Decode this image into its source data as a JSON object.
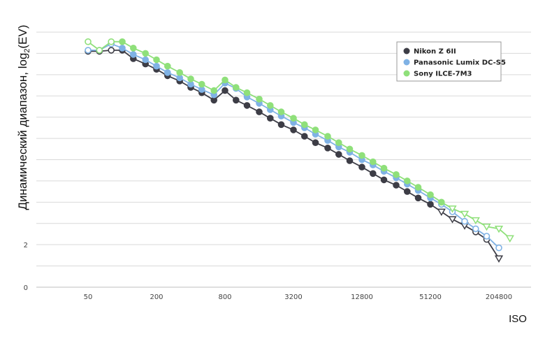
{
  "chart_data": {
    "type": "line",
    "xlabel": "ISO",
    "ylabel": "Динамический диапазон, log",
    "ylabel_sub": "2",
    "ylabel_tail": "(EV)",
    "x_scale": "log2",
    "x_ticks": [
      50,
      200,
      800,
      3200,
      12800,
      51200,
      204800
    ],
    "x_tick_labels": [
      "50",
      "200",
      "800",
      "3200",
      "12800",
      "51200",
      "204800"
    ],
    "y_ticks": [
      0,
      1,
      2,
      3,
      4,
      5,
      6,
      7,
      8,
      9,
      10,
      11,
      12
    ],
    "y_tick_labels": [
      "0",
      "",
      "2",
      "",
      "",
      "",
      "",
      "",
      "",
      "",
      "",
      "",
      ""
    ],
    "ylim": [
      0,
      12
    ],
    "grid": true,
    "legend_position": "top-right",
    "series": [
      {
        "name": "Nikon Z 6II",
        "color": "#3d3d46",
        "points": [
          {
            "x": 50,
            "y": 11.1,
            "m": "oc"
          },
          {
            "x": 63,
            "y": 11.1,
            "m": "f"
          },
          {
            "x": 80,
            "y": 11.15,
            "m": "oc"
          },
          {
            "x": 100,
            "y": 11.15,
            "m": "f"
          },
          {
            "x": 125,
            "y": 10.75,
            "m": "f"
          },
          {
            "x": 160,
            "y": 10.5,
            "m": "f"
          },
          {
            "x": 200,
            "y": 10.25,
            "m": "f"
          },
          {
            "x": 250,
            "y": 9.95,
            "m": "f"
          },
          {
            "x": 320,
            "y": 9.7,
            "m": "f"
          },
          {
            "x": 400,
            "y": 9.4,
            "m": "f"
          },
          {
            "x": 500,
            "y": 9.15,
            "m": "f"
          },
          {
            "x": 640,
            "y": 8.8,
            "m": "f"
          },
          {
            "x": 800,
            "y": 9.25,
            "m": "f"
          },
          {
            "x": 1000,
            "y": 8.8,
            "m": "f"
          },
          {
            "x": 1250,
            "y": 8.55,
            "m": "f"
          },
          {
            "x": 1600,
            "y": 8.25,
            "m": "f"
          },
          {
            "x": 2000,
            "y": 7.95,
            "m": "f"
          },
          {
            "x": 2500,
            "y": 7.65,
            "m": "f"
          },
          {
            "x": 3200,
            "y": 7.4,
            "m": "f"
          },
          {
            "x": 4000,
            "y": 7.1,
            "m": "f"
          },
          {
            "x": 5000,
            "y": 6.8,
            "m": "f"
          },
          {
            "x": 6400,
            "y": 6.55,
            "m": "f"
          },
          {
            "x": 8000,
            "y": 6.25,
            "m": "f"
          },
          {
            "x": 10000,
            "y": 5.95,
            "m": "f"
          },
          {
            "x": 12800,
            "y": 5.65,
            "m": "f"
          },
          {
            "x": 16000,
            "y": 5.35,
            "m": "f"
          },
          {
            "x": 20000,
            "y": 5.05,
            "m": "f"
          },
          {
            "x": 25600,
            "y": 4.8,
            "m": "f"
          },
          {
            "x": 32000,
            "y": 4.5,
            "m": "f"
          },
          {
            "x": 40000,
            "y": 4.2,
            "m": "f"
          },
          {
            "x": 51200,
            "y": 3.9,
            "m": "f"
          },
          {
            "x": 64000,
            "y": 3.55,
            "m": "tr"
          },
          {
            "x": 80000,
            "y": 3.2,
            "m": "tr"
          },
          {
            "x": 102400,
            "y": 2.9,
            "m": "tr"
          },
          {
            "x": 128000,
            "y": 2.6,
            "m": "oc"
          },
          {
            "x": 160000,
            "y": 2.25,
            "m": "oc"
          },
          {
            "x": 204800,
            "y": 1.35,
            "m": "tr"
          }
        ]
      },
      {
        "name": "Panasonic Lumix DC-S5",
        "color": "#7fb2e5",
        "points": [
          {
            "x": 50,
            "y": 11.15,
            "m": "oc"
          },
          {
            "x": 63,
            "y": 11.15,
            "m": "f"
          },
          {
            "x": 80,
            "y": 11.45,
            "m": "oc"
          },
          {
            "x": 100,
            "y": 11.25,
            "m": "f"
          },
          {
            "x": 125,
            "y": 10.95,
            "m": "f"
          },
          {
            "x": 160,
            "y": 10.7,
            "m": "f"
          },
          {
            "x": 200,
            "y": 10.4,
            "m": "f"
          },
          {
            "x": 250,
            "y": 10.1,
            "m": "f"
          },
          {
            "x": 320,
            "y": 9.85,
            "m": "f"
          },
          {
            "x": 400,
            "y": 9.55,
            "m": "f"
          },
          {
            "x": 500,
            "y": 9.3,
            "m": "f"
          },
          {
            "x": 640,
            "y": 9.05,
            "m": "f"
          },
          {
            "x": 800,
            "y": 9.6,
            "m": "f"
          },
          {
            "x": 1000,
            "y": 9.35,
            "m": "f"
          },
          {
            "x": 1250,
            "y": 8.95,
            "m": "f"
          },
          {
            "x": 1600,
            "y": 8.65,
            "m": "f"
          },
          {
            "x": 2000,
            "y": 8.35,
            "m": "f"
          },
          {
            "x": 2500,
            "y": 8.05,
            "m": "f"
          },
          {
            "x": 3200,
            "y": 7.75,
            "m": "f"
          },
          {
            "x": 4000,
            "y": 7.5,
            "m": "f"
          },
          {
            "x": 5000,
            "y": 7.2,
            "m": "f"
          },
          {
            "x": 6400,
            "y": 6.9,
            "m": "f"
          },
          {
            "x": 8000,
            "y": 6.6,
            "m": "f"
          },
          {
            "x": 10000,
            "y": 6.35,
            "m": "f"
          },
          {
            "x": 12800,
            "y": 6.0,
            "m": "f"
          },
          {
            "x": 16000,
            "y": 5.75,
            "m": "f"
          },
          {
            "x": 20000,
            "y": 5.45,
            "m": "f"
          },
          {
            "x": 25600,
            "y": 5.15,
            "m": "f"
          },
          {
            "x": 32000,
            "y": 4.85,
            "m": "f"
          },
          {
            "x": 40000,
            "y": 4.55,
            "m": "f"
          },
          {
            "x": 51200,
            "y": 4.2,
            "m": "f"
          },
          {
            "x": 64000,
            "y": 3.9,
            "m": "oc"
          },
          {
            "x": 80000,
            "y": 3.55,
            "m": "oc"
          },
          {
            "x": 102400,
            "y": 3.1,
            "m": "oc"
          },
          {
            "x": 128000,
            "y": 2.75,
            "m": "oc"
          },
          {
            "x": 160000,
            "y": 2.4,
            "m": "oc"
          },
          {
            "x": 204800,
            "y": 1.85,
            "m": "oc"
          }
        ]
      },
      {
        "name": "Sony ILCE-7M3",
        "color": "#8fe07a",
        "points": [
          {
            "x": 50,
            "y": 11.55,
            "m": "oc"
          },
          {
            "x": 63,
            "y": 11.15,
            "m": "oc"
          },
          {
            "x": 80,
            "y": 11.55,
            "m": "oc"
          },
          {
            "x": 100,
            "y": 11.55,
            "m": "f"
          },
          {
            "x": 125,
            "y": 11.25,
            "m": "f"
          },
          {
            "x": 160,
            "y": 11.0,
            "m": "f"
          },
          {
            "x": 200,
            "y": 10.7,
            "m": "f"
          },
          {
            "x": 250,
            "y": 10.4,
            "m": "f"
          },
          {
            "x": 320,
            "y": 10.1,
            "m": "f"
          },
          {
            "x": 400,
            "y": 9.8,
            "m": "f"
          },
          {
            "x": 500,
            "y": 9.55,
            "m": "f"
          },
          {
            "x": 640,
            "y": 9.25,
            "m": "f"
          },
          {
            "x": 800,
            "y": 9.75,
            "m": "f"
          },
          {
            "x": 1000,
            "y": 9.4,
            "m": "f"
          },
          {
            "x": 1250,
            "y": 9.15,
            "m": "f"
          },
          {
            "x": 1600,
            "y": 8.85,
            "m": "f"
          },
          {
            "x": 2000,
            "y": 8.55,
            "m": "f"
          },
          {
            "x": 2500,
            "y": 8.25,
            "m": "f"
          },
          {
            "x": 3200,
            "y": 7.95,
            "m": "f"
          },
          {
            "x": 4000,
            "y": 7.65,
            "m": "f"
          },
          {
            "x": 5000,
            "y": 7.4,
            "m": "f"
          },
          {
            "x": 6400,
            "y": 7.1,
            "m": "f"
          },
          {
            "x": 8000,
            "y": 6.8,
            "m": "f"
          },
          {
            "x": 10000,
            "y": 6.5,
            "m": "f"
          },
          {
            "x": 12800,
            "y": 6.2,
            "m": "f"
          },
          {
            "x": 16000,
            "y": 5.9,
            "m": "f"
          },
          {
            "x": 20000,
            "y": 5.6,
            "m": "f"
          },
          {
            "x": 25600,
            "y": 5.3,
            "m": "f"
          },
          {
            "x": 32000,
            "y": 5.0,
            "m": "f"
          },
          {
            "x": 40000,
            "y": 4.7,
            "m": "f"
          },
          {
            "x": 51200,
            "y": 4.35,
            "m": "f"
          },
          {
            "x": 64000,
            "y": 4.0,
            "m": "f"
          },
          {
            "x": 80000,
            "y": 3.7,
            "m": "tr"
          },
          {
            "x": 102400,
            "y": 3.45,
            "m": "tr"
          },
          {
            "x": 128000,
            "y": 3.15,
            "m": "tr"
          },
          {
            "x": 160000,
            "y": 2.85,
            "m": "tr"
          },
          {
            "x": 204800,
            "y": 2.75,
            "m": "tr"
          },
          {
            "x": 256000,
            "y": 2.3,
            "m": "tr"
          }
        ]
      }
    ]
  }
}
